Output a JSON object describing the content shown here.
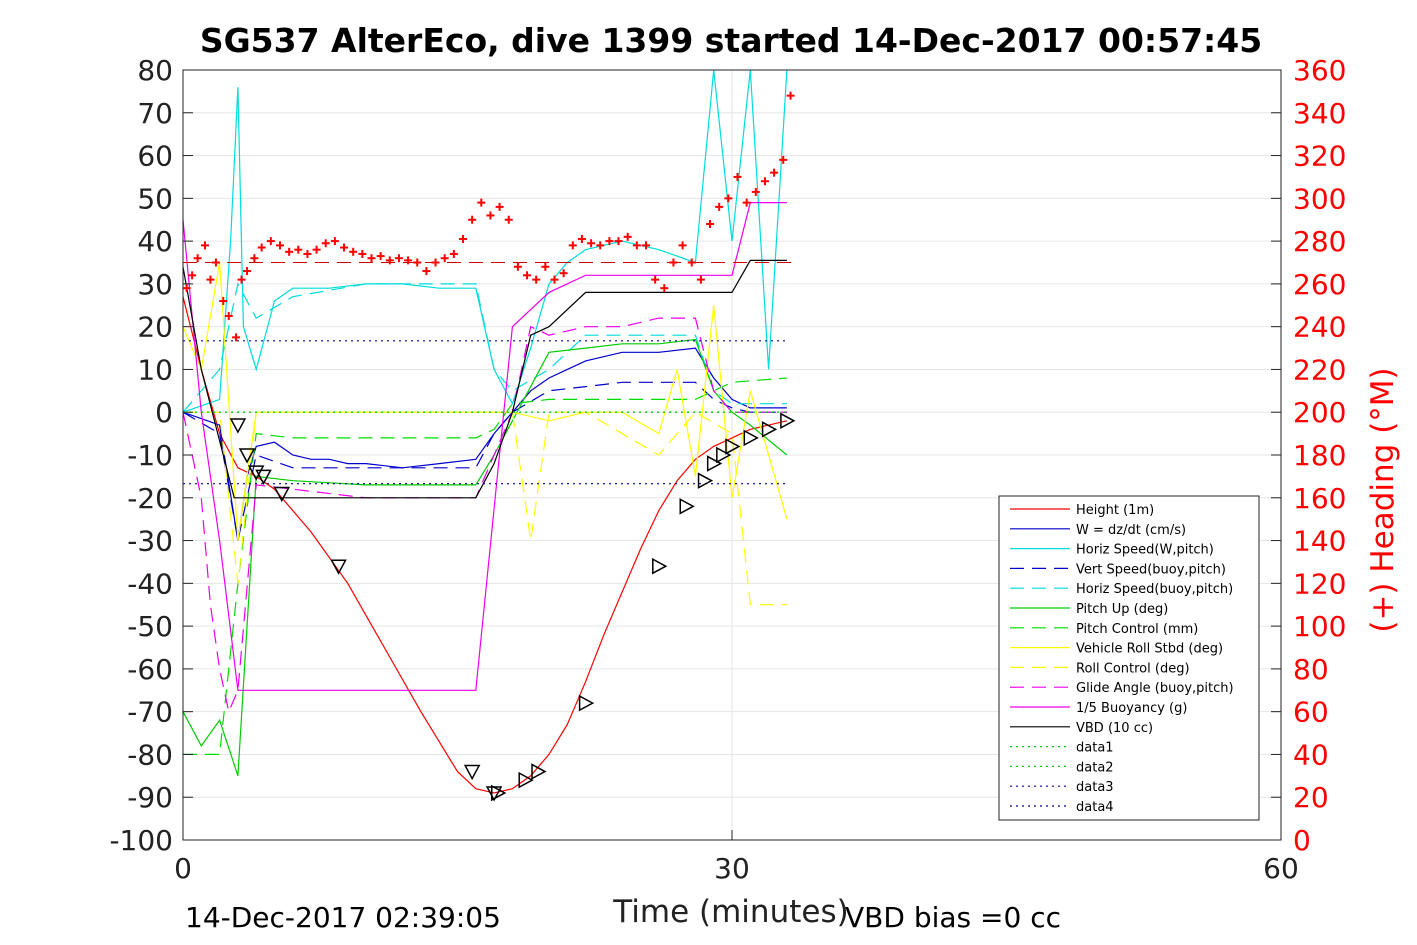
{
  "chart_data": {
    "type": "line",
    "title": "SG537 AlterEco, dive 1399 started 14-Dec-2017 00:57:45",
    "xlabel": "Time (minutes)",
    "ylabel_right": "(+) Heading (°M)",
    "xlim": [
      0,
      60
    ],
    "ylim_left": [
      -100,
      80
    ],
    "ylim_right": [
      0,
      360
    ],
    "x_ticks": [
      "0",
      "30",
      "60"
    ],
    "y_ticks_left": [
      "80",
      "70",
      "60",
      "50",
      "40",
      "30",
      "20",
      "10",
      "0",
      "-10",
      "-20",
      "-30",
      "-40",
      "-50",
      "-60",
      "-70",
      "-80",
      "-90",
      "-100"
    ],
    "y_ticks_right": [
      "360",
      "340",
      "320",
      "300",
      "280",
      "260",
      "240",
      "220",
      "200",
      "180",
      "160",
      "140",
      "120",
      "100",
      "80",
      "60",
      "40",
      "20",
      "0"
    ],
    "grid": true,
    "legend_position": "lower-right",
    "footer_left": "14-Dec-2017 02:39:05",
    "footer_right": "VBD bias =0 cc",
    "legend": [
      {
        "label": "Height (1m)",
        "color": "#ff0000",
        "dash": "solid"
      },
      {
        "label": "W = dz/dt (cm/s)",
        "color": "#0000cc",
        "dash": "solid"
      },
      {
        "label": "Horiz Speed(W,pitch)",
        "color": "#00dddd",
        "dash": "solid"
      },
      {
        "label": "Vert Speed(buoy,pitch)",
        "color": "#0000cc",
        "dash": "dashed"
      },
      {
        "label": "Horiz Speed(buoy,pitch)",
        "color": "#00dddd",
        "dash": "dashed"
      },
      {
        "label": "Pitch Up (deg)",
        "color": "#00cc00",
        "dash": "solid"
      },
      {
        "label": "Pitch Control (mm)",
        "color": "#00dd00",
        "dash": "dashed"
      },
      {
        "label": "Vehicle Roll Stbd (deg)",
        "color": "#ffff00",
        "dash": "solid"
      },
      {
        "label": "Roll Control (deg)",
        "color": "#ffff00",
        "dash": "dashed"
      },
      {
        "label": "Glide Angle (buoy,pitch)",
        "color": "#ee00ee",
        "dash": "dashed"
      },
      {
        "label": "1/5 Buoyancy (g)",
        "color": "#ee00ee",
        "dash": "solid"
      },
      {
        "label": "VBD (10 cc)",
        "color": "#000000",
        "dash": "solid"
      },
      {
        "label": "data1",
        "color": "#00cc00",
        "dash": "dotted"
      },
      {
        "label": "data2",
        "color": "#00cc00",
        "dash": "dotted"
      },
      {
        "label": "data3",
        "color": "#000099",
        "dash": "dotted"
      },
      {
        "label": "data4",
        "color": "#000099",
        "dash": "dotted"
      }
    ],
    "series": [
      {
        "name": "Height (1m)",
        "color": "#ff0000",
        "dash": "solid",
        "x": [
          0,
          1,
          2,
          3,
          4,
          5,
          7,
          9,
          11,
          13,
          15,
          16,
          17,
          18,
          19,
          20,
          21,
          22,
          23,
          24,
          25,
          26,
          27,
          28,
          29,
          30,
          31,
          32,
          33
        ],
        "y": [
          27,
          10,
          -5,
          -13,
          -15,
          -18,
          -28,
          -40,
          -55,
          -70,
          -84,
          -88,
          -89,
          -88,
          -85,
          -80,
          -73,
          -63,
          -52,
          -42,
          -32,
          -23,
          -16,
          -11,
          -8,
          -6,
          -4,
          -3,
          -2
        ]
      },
      {
        "name": "W = dz/dt (cm/s)",
        "color": "#0000cc",
        "dash": "solid",
        "x": [
          0,
          2,
          3,
          3.5,
          4,
          5,
          6,
          7,
          8,
          9,
          10,
          12,
          14,
          16,
          17,
          18,
          19,
          20,
          21,
          22,
          24,
          26,
          28,
          29,
          30,
          31,
          33
        ],
        "y": [
          0,
          -3,
          -30,
          -15,
          -8,
          -7,
          -10,
          -11,
          -11,
          -12,
          -12,
          -13,
          -12,
          -11,
          -5,
          0,
          5,
          8,
          10,
          12,
          14,
          14,
          15,
          8,
          3,
          1,
          1
        ]
      },
      {
        "name": "Horiz Speed(W,pitch)",
        "color": "#00dddd",
        "dash": "solid",
        "x": [
          0,
          2,
          2.6,
          3,
          3.3,
          4,
          5,
          6,
          8,
          10,
          12,
          14,
          16,
          17,
          18,
          19,
          20,
          21,
          22,
          24,
          26,
          28,
          29,
          30,
          31,
          32,
          33
        ],
        "y": [
          0,
          3,
          40,
          76,
          20,
          10,
          26,
          29,
          29,
          30,
          30,
          29,
          29,
          10,
          2,
          15,
          30,
          35,
          38,
          40,
          38,
          35,
          80,
          40,
          80,
          10,
          80
        ]
      },
      {
        "name": "Vert Speed(buoy,pitch)",
        "color": "#0000cc",
        "dash": "dashed",
        "x": [
          0,
          2,
          3,
          4,
          6,
          10,
          14,
          16,
          17,
          18,
          20,
          22,
          24,
          26,
          28,
          29,
          30,
          31,
          33
        ],
        "y": [
          0,
          -5,
          -30,
          -10,
          -13,
          -13,
          -13,
          -13,
          -5,
          0,
          5,
          6,
          7,
          7,
          7,
          3,
          1,
          0,
          0
        ]
      },
      {
        "name": "Horiz Speed(buoy,pitch)",
        "color": "#00dddd",
        "dash": "dashed",
        "x": [
          0,
          2,
          3,
          4,
          6,
          10,
          14,
          16,
          17,
          18,
          20,
          22,
          24,
          26,
          28,
          29,
          30,
          33
        ],
        "y": [
          0,
          10,
          30,
          22,
          27,
          30,
          30,
          30,
          10,
          5,
          10,
          18,
          18,
          18,
          18,
          5,
          2,
          2
        ]
      },
      {
        "name": "Pitch Up (deg)",
        "color": "#00cc00",
        "dash": "solid",
        "x": [
          0,
          1,
          2,
          3,
          4,
          6,
          10,
          14,
          16,
          17,
          18,
          20,
          22,
          24,
          26,
          28,
          29,
          30,
          31,
          33
        ],
        "y": [
          -70,
          -78,
          -72,
          -85,
          -15,
          -16,
          -17,
          -17,
          -17,
          -10,
          -2,
          14,
          15,
          16,
          16,
          17,
          5,
          0,
          -3,
          -10
        ]
      },
      {
        "name": "Pitch Control (mm)",
        "color": "#00dd00",
        "dash": "dashed",
        "x": [
          0,
          2,
          3,
          4,
          6,
          10,
          14,
          16,
          17,
          18,
          20,
          22,
          24,
          26,
          28,
          29,
          30,
          33
        ],
        "y": [
          -80,
          -80,
          -40,
          -5,
          -6,
          -6,
          -6,
          -6,
          -4,
          2,
          3,
          3,
          3,
          3,
          3,
          5,
          7,
          8
        ]
      },
      {
        "name": "Vehicle Roll Stbd (deg)",
        "color": "#ffff00",
        "dash": "solid",
        "x": [
          0,
          1,
          2,
          3,
          4,
          6,
          10,
          14,
          16,
          17,
          18,
          20,
          22,
          24,
          26,
          27,
          28,
          29,
          30,
          31,
          33
        ],
        "y": [
          20,
          10,
          35,
          -30,
          0,
          0,
          0,
          0,
          0,
          0,
          0,
          -2,
          0,
          0,
          -5,
          10,
          -15,
          25,
          -20,
          5,
          -25
        ]
      },
      {
        "name": "Roll Control (deg)",
        "color": "#ffff00",
        "dash": "dashed",
        "x": [
          0,
          2,
          3,
          4,
          6,
          10,
          14,
          16,
          18,
          19,
          20,
          22,
          26,
          28,
          30,
          31,
          33
        ],
        "y": [
          0,
          0,
          -40,
          0,
          0,
          0,
          0,
          0,
          0,
          -30,
          0,
          0,
          -10,
          0,
          -5,
          -45,
          -45
        ]
      },
      {
        "name": "Glide Angle (buoy,pitch)",
        "color": "#ee00ee",
        "dash": "dashed",
        "x": [
          0,
          1,
          1.5,
          2,
          2.5,
          3,
          4,
          6,
          10,
          14,
          16,
          17,
          18,
          19,
          20,
          22,
          24,
          26,
          28,
          29,
          30,
          33
        ],
        "y": [
          0,
          -20,
          -45,
          -60,
          -70,
          -65,
          -17,
          -18,
          -20,
          -20,
          -20,
          -10,
          0,
          20,
          18,
          20,
          20,
          22,
          22,
          5,
          0,
          0
        ]
      },
      {
        "name": "1/5 Buoyancy (g)",
        "color": "#ee00ee",
        "dash": "solid",
        "x": [
          0,
          1,
          2,
          3,
          5,
          10,
          15,
          16,
          18,
          20,
          22,
          28,
          30,
          31,
          33
        ],
        "y": [
          45,
          0,
          -30,
          -65,
          -65,
          -65,
          -65,
          -65,
          20,
          28,
          32,
          32,
          32,
          49,
          49
        ]
      },
      {
        "name": "VBD (10 cc)",
        "color": "#000000",
        "dash": "solid",
        "x": [
          0,
          1,
          2.8,
          5,
          10,
          15,
          16,
          17,
          18,
          19,
          20,
          22,
          25,
          28,
          30,
          31,
          33
        ],
        "y": [
          34,
          10,
          -20,
          -20,
          -20,
          -20,
          -20,
          -12,
          0,
          18,
          20,
          28,
          28,
          28,
          28,
          35.5,
          35.5
        ]
      },
      {
        "name": "data1",
        "color": "#00cc00",
        "dash": "dotted",
        "x": [
          0,
          33
        ],
        "y": [
          0,
          0
        ]
      },
      {
        "name": "data2",
        "color": "#00cc00",
        "dash": "dotted",
        "x": [
          0,
          33
        ],
        "y": [
          0,
          0
        ]
      },
      {
        "name": "data3",
        "color": "#000099",
        "dash": "dotted",
        "x": [
          0,
          33
        ],
        "y": [
          16.7,
          16.7
        ]
      },
      {
        "name": "data4",
        "color": "#000099",
        "dash": "dotted",
        "x": [
          0,
          33
        ],
        "y": [
          -16.7,
          -16.7
        ]
      }
    ],
    "heading_target": {
      "color": "#cc0000",
      "dash": "dashed",
      "value": 270
    },
    "heading_points": {
      "color": "#ff0000",
      "axis": "right",
      "x": [
        0.2,
        0.5,
        0.8,
        1.2,
        1.5,
        1.8,
        2.2,
        2.5,
        2.9,
        3.2,
        3.5,
        3.9,
        4.3,
        4.8,
        5.3,
        5.8,
        6.3,
        6.8,
        7.3,
        7.8,
        8.3,
        8.8,
        9.3,
        9.8,
        10.3,
        10.8,
        11.3,
        11.8,
        12.3,
        12.8,
        13.3,
        13.8,
        14.3,
        14.8,
        15.3,
        15.8,
        16.3,
        16.8,
        17.3,
        17.8,
        18.3,
        18.8,
        19.3,
        19.8,
        20.3,
        20.8,
        21.3,
        21.8,
        22.3,
        22.8,
        23.3,
        23.8,
        24.3,
        24.8,
        25.3,
        25.8,
        26.3,
        26.8,
        27.3,
        27.8,
        28.3,
        28.8,
        29.3,
        29.8,
        30.3,
        30.8,
        31.3,
        31.8,
        32.3,
        32.8,
        33.2
      ],
      "y": [
        258,
        264,
        272,
        278,
        262,
        270,
        252,
        245,
        235,
        262,
        266,
        272,
        277,
        280,
        278,
        275,
        276,
        274,
        276,
        279,
        280,
        277,
        275,
        274,
        272,
        273,
        271,
        272,
        271,
        270,
        266,
        270,
        272,
        274,
        281,
        290,
        298,
        292,
        296,
        290,
        268,
        264,
        262,
        268,
        262,
        265,
        278,
        281,
        279,
        278,
        280,
        280,
        282,
        278,
        278,
        262,
        258,
        270,
        278,
        270,
        262,
        288,
        296,
        300,
        310,
        298,
        303,
        308,
        312,
        318,
        348
      ]
    },
    "depth_markers": {
      "color": "#000000",
      "down_x": [
        3.0,
        3.5,
        4.0,
        4.4,
        5.4,
        8.5,
        15.8,
        17.0
      ],
      "down_y": [
        -3,
        -10,
        -14,
        -15,
        -19,
        -36,
        -84,
        -89
      ],
      "up_x": [
        17.2,
        18.7,
        19.4,
        22.0,
        26.0,
        27.5,
        28.5,
        29.0,
        29.5,
        30.0,
        31.0,
        32.0,
        33.0
      ],
      "up_y": [
        -89,
        -86,
        -84,
        -68,
        -36,
        -22,
        -16,
        -12,
        -10,
        -8,
        -6,
        -4,
        -2
      ]
    }
  }
}
